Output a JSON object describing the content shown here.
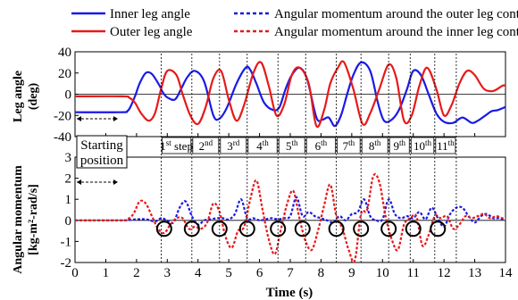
{
  "chart_data": [
    {
      "type": "line",
      "ylabel": [
        "Leg angle",
        "(deg)"
      ],
      "ylim": [
        -40,
        40
      ],
      "yticks": [
        -40,
        -20,
        0,
        20,
        40
      ],
      "xlim": [
        0,
        14
      ],
      "grid": false,
      "legend": [
        {
          "label": "Inner leg angle",
          "color": "#1a1ae6",
          "style": "solid"
        },
        {
          "label": "Angular momentum around the outer leg contact point",
          "color": "#1a1ae6",
          "style": "dashed"
        },
        {
          "label": "Outer leg angle",
          "color": "#e61a1a",
          "style": "solid"
        },
        {
          "label": "Angular momentum around the inner leg contact point",
          "color": "#e61a1a",
          "style": "dashed"
        }
      ],
      "series": [
        {
          "name": "Inner leg angle",
          "color": "#1a1ae6",
          "x": [
            0,
            1.5,
            1.7,
            1.8,
            1.95,
            2.1,
            2.3,
            2.5,
            2.75,
            2.85,
            3.0,
            3.25,
            3.45,
            3.65,
            3.9,
            4.2,
            4.5,
            4.7,
            4.95,
            5.25,
            5.55,
            5.7,
            5.9,
            6.15,
            6.45,
            6.65,
            6.85,
            7.05,
            7.3,
            7.55,
            7.85,
            8.05,
            8.25,
            8.45,
            8.65,
            8.85,
            9.05,
            9.3,
            9.6,
            9.85,
            10.05,
            10.3,
            10.55,
            10.8,
            11.0,
            11.25,
            11.5,
            11.75,
            12.0,
            12.3,
            12.6,
            12.9,
            13.1,
            13.35,
            13.55,
            13.75,
            14.0
          ],
          "y": [
            -17,
            -17,
            -16,
            -12,
            -2,
            10,
            20,
            19,
            8,
            2,
            -3,
            -5,
            5,
            16,
            22,
            12,
            -20,
            -23,
            -12,
            10,
            25,
            23,
            10,
            -8,
            -15,
            -12,
            5,
            18,
            25,
            14,
            -22,
            -24,
            -22,
            -30,
            -20,
            0,
            18,
            30,
            22,
            -8,
            -25,
            -24,
            -14,
            5,
            22,
            18,
            0,
            -18,
            -26,
            -27,
            -22,
            -27,
            -25,
            -20,
            -16,
            -15,
            -12
          ]
        },
        {
          "name": "Outer leg angle",
          "color": "#e61a1a",
          "x": [
            0,
            1.55,
            1.75,
            1.95,
            2.15,
            2.4,
            2.6,
            2.8,
            3.0,
            3.3,
            3.5,
            3.75,
            4.0,
            4.25,
            4.5,
            4.75,
            5.0,
            5.25,
            5.5,
            5.8,
            6.05,
            6.3,
            6.55,
            6.8,
            7.05,
            7.3,
            7.6,
            7.85,
            8.1,
            8.3,
            8.55,
            8.75,
            9.05,
            9.35,
            9.6,
            9.9,
            10.2,
            10.45,
            10.7,
            10.95,
            11.2,
            11.45,
            11.75,
            12.0,
            12.25,
            12.5,
            12.75,
            13.0,
            13.3,
            13.6,
            13.9,
            14.0
          ],
          "y": [
            -2,
            -2,
            -3,
            -8,
            -18,
            -25,
            -18,
            5,
            22,
            18,
            0,
            -20,
            -28,
            -12,
            15,
            22,
            -5,
            -25,
            -10,
            20,
            30,
            8,
            -20,
            -10,
            18,
            25,
            10,
            -30,
            -15,
            10,
            25,
            30,
            5,
            -28,
            -18,
            5,
            28,
            15,
            -25,
            -20,
            8,
            25,
            5,
            -20,
            -10,
            10,
            22,
            18,
            5,
            3,
            8,
            8
          ]
        }
      ]
    },
    {
      "type": "line",
      "ylabel": [
        "Angular momentum",
        "[kg-m²-rad/s]"
      ],
      "ylim": [
        -2,
        3
      ],
      "yticks": [
        -2,
        -1,
        0,
        1,
        2,
        3
      ],
      "xlabel": "Time (s)",
      "xlim": [
        0,
        14
      ],
      "xticks": [
        0,
        1,
        2,
        3,
        4,
        5,
        6,
        7,
        8,
        9,
        10,
        11,
        12,
        13,
        14
      ],
      "grid": false,
      "series": [
        {
          "name": "Angular momentum around the outer leg contact point",
          "color": "#1a1ae6",
          "style": "dashed",
          "x": [
            0,
            1.5,
            2.0,
            2.3,
            2.6,
            2.8,
            3.0,
            3.2,
            3.4,
            3.6,
            3.8,
            4.0,
            4.2,
            4.4,
            4.6,
            4.8,
            5.0,
            5.2,
            5.4,
            5.6,
            5.8,
            6.0,
            6.2,
            6.4,
            6.6,
            6.8,
            7.0,
            7.2,
            7.4,
            7.6,
            7.8,
            8.0,
            8.2,
            8.4,
            8.6,
            8.8,
            9.0,
            9.2,
            9.4,
            9.6,
            9.8,
            10.0,
            10.2,
            10.4,
            10.6,
            10.8,
            11.0,
            11.2,
            11.4,
            11.6,
            11.8,
            12.0,
            12.2,
            12.4,
            12.6,
            12.8,
            13.0,
            13.2,
            13.4,
            13.6,
            13.8,
            14.0
          ],
          "y": [
            0,
            0,
            0.05,
            0.05,
            -0.05,
            0.1,
            0,
            -0.1,
            0.6,
            0.9,
            0.2,
            -0.2,
            0,
            0.05,
            0.1,
            0.1,
            0.05,
            0.3,
            1.0,
            0.1,
            0.1,
            0,
            0.05,
            0.1,
            0.05,
            0.1,
            0.2,
            1.1,
            0.2,
            0.4,
            0.2,
            0.1,
            0,
            -0.1,
            0.2,
            0,
            0.3,
            0.4,
            1.0,
            0.2,
            0,
            0.05,
            1.0,
            0.3,
            0.1,
            0.2,
            0.1,
            0.4,
            0.05,
            0.6,
            0.1,
            -0.3,
            0.3,
            0.6,
            0.6,
            0.2,
            -0.1,
            0.2,
            0.3,
            0.1,
            0.1,
            0
          ]
        },
        {
          "name": "Angular momentum around the inner leg contact point",
          "color": "#e61a1a",
          "style": "dashed",
          "x": [
            0,
            1.5,
            1.7,
            1.9,
            2.1,
            2.3,
            2.5,
            2.7,
            2.9,
            3.1,
            3.3,
            3.5,
            3.7,
            3.9,
            4.1,
            4.3,
            4.5,
            4.7,
            4.9,
            5.1,
            5.3,
            5.5,
            5.7,
            5.9,
            6.1,
            6.3,
            6.5,
            6.7,
            6.9,
            7.1,
            7.3,
            7.5,
            7.7,
            7.9,
            8.1,
            8.3,
            8.5,
            8.7,
            8.9,
            9.1,
            9.3,
            9.5,
            9.7,
            9.9,
            10.1,
            10.3,
            10.5,
            10.7,
            10.9,
            11.1,
            11.3,
            11.5,
            11.7,
            11.9,
            12.1,
            12.3,
            12.5,
            12.7,
            12.9,
            13.1,
            13.3,
            13.5,
            13.7,
            13.9,
            14.0
          ],
          "y": [
            0,
            0,
            0.05,
            0.3,
            0.9,
            0.8,
            0.2,
            -0.4,
            -0.6,
            -0.2,
            0.1,
            0.1,
            -0.4,
            -0.3,
            -0.4,
            -0.1,
            0.8,
            0.4,
            -0.8,
            -1.3,
            -0.5,
            -0.3,
            1.0,
            1.9,
            0.5,
            -0.9,
            -1.6,
            -0.4,
            0.8,
            1.4,
            0.1,
            -1.0,
            -1.4,
            -0.5,
            0.7,
            1.7,
            0.2,
            -0.4,
            -1.4,
            -1.9,
            0.3,
            0.5,
            2.1,
            1.8,
            0.2,
            -0.9,
            -1.4,
            -0.2,
            0.1,
            0.2,
            -1.2,
            -0.7,
            0.2,
            0.1,
            0.2,
            -0.4,
            -0.2,
            0.2,
            0.1,
            0.2,
            0.3,
            0.1,
            0.2,
            0.1,
            0.1
          ]
        }
      ]
    }
  ],
  "annotations": {
    "starting_position": [
      "Starting",
      "position"
    ],
    "steps": [
      {
        "label": "1",
        "sup": "st",
        "suffix": " step"
      },
      {
        "label": "2",
        "sup": "nd",
        "suffix": ""
      },
      {
        "label": "3",
        "sup": "rd",
        "suffix": ""
      },
      {
        "label": "4",
        "sup": "th",
        "suffix": ""
      },
      {
        "label": "5",
        "sup": "th",
        "suffix": ""
      },
      {
        "label": "6",
        "sup": "th",
        "suffix": ""
      },
      {
        "label": "7",
        "sup": "th",
        "suffix": ""
      },
      {
        "label": "8",
        "sup": "th",
        "suffix": ""
      },
      {
        "label": "9",
        "sup": "th",
        "suffix": ""
      },
      {
        "label": "10",
        "sup": "th",
        "suffix": ""
      },
      {
        "label": "11",
        "sup": "th",
        "suffix": ""
      }
    ],
    "step_boundaries": [
      2.8,
      3.8,
      4.7,
      5.6,
      6.6,
      7.5,
      8.5,
      9.3,
      10.2,
      10.9,
      11.7,
      12.4
    ],
    "circle_times": [
      2.9,
      3.8,
      4.7,
      5.6,
      6.6,
      7.4,
      8.5,
      9.3,
      10.2,
      11.0,
      11.8
    ],
    "circle_value": -0.4
  }
}
